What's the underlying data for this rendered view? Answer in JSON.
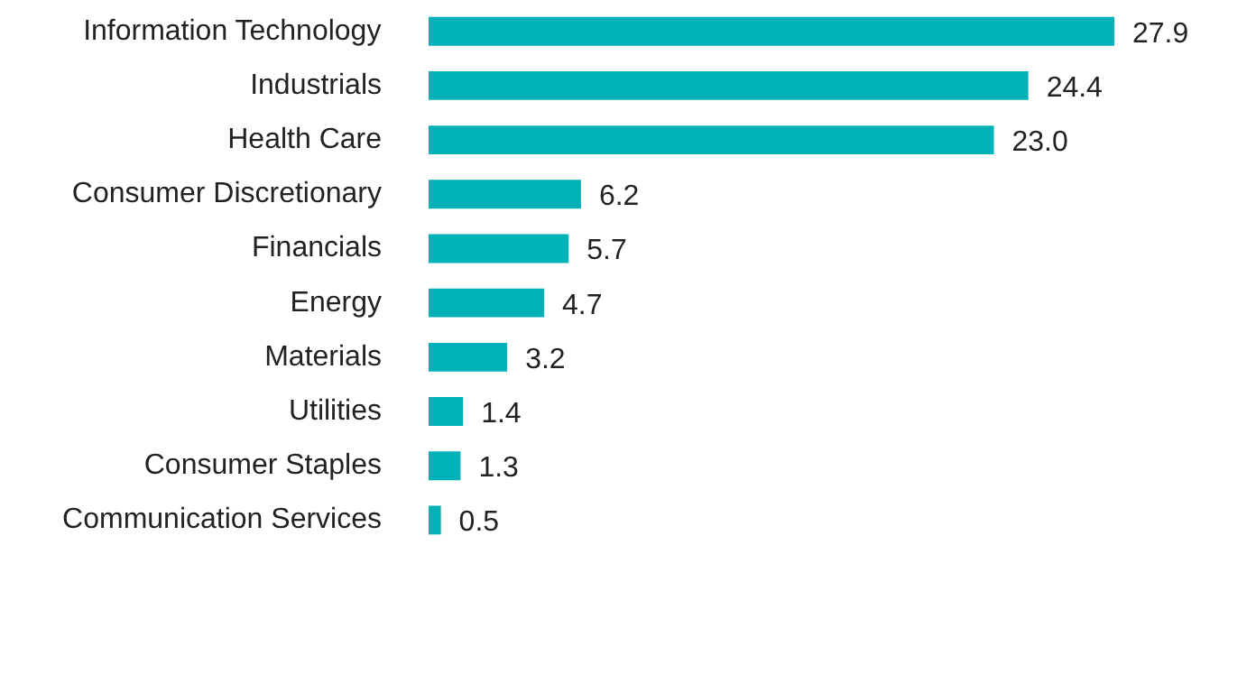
{
  "chart_data": {
    "type": "bar",
    "orientation": "horizontal",
    "categories": [
      "Information Technology",
      "Industrials",
      "Health Care",
      "Consumer Discretionary",
      "Financials",
      "Energy",
      "Materials",
      "Utilities",
      "Consumer Staples",
      "Communication Services"
    ],
    "values": [
      27.9,
      24.4,
      23.0,
      6.2,
      5.7,
      4.7,
      3.2,
      1.4,
      1.3,
      0.5
    ],
    "value_labels": [
      "27.9",
      "24.4",
      "23.0",
      "6.2",
      "5.7",
      "4.7",
      "3.2",
      "1.4",
      "1.3",
      "0.5"
    ],
    "color": "#00b2b8"
  }
}
